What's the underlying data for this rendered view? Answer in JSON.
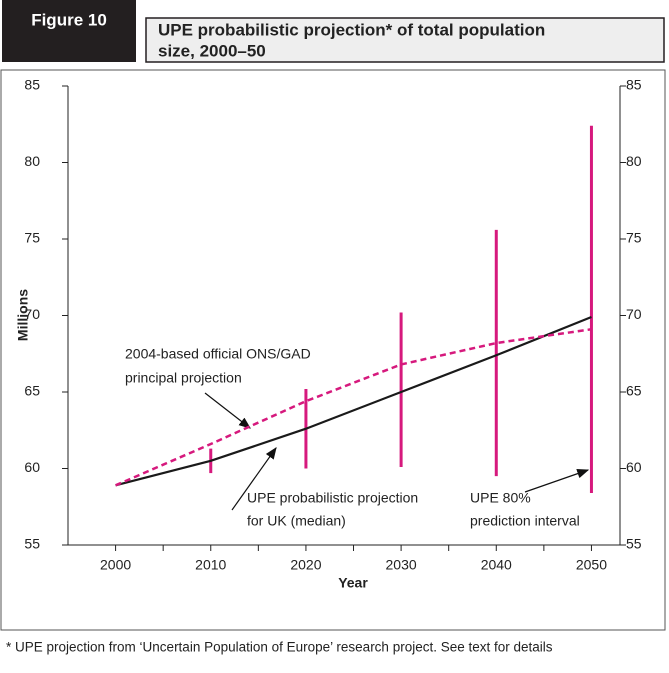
{
  "chart_data": {
    "type": "line",
    "figure_label": "Figure 10",
    "title_lines": [
      "UPE probabilistic projection* of total population",
      "size, 2000–50"
    ],
    "xlabel": "Year",
    "ylabel": "Millions",
    "xlim": [
      1995,
      2053
    ],
    "xticks": [
      2000,
      2010,
      2020,
      2030,
      2040,
      2050
    ],
    "ylim": [
      55,
      85
    ],
    "yticks": [
      55,
      60,
      65,
      70,
      75,
      80,
      85
    ],
    "x": [
      2000,
      2010,
      2020,
      2030,
      2040,
      2050
    ],
    "series": [
      {
        "color": "#1a1a1a",
        "dashed": false,
        "values": [
          58.9,
          60.5,
          62.6,
          65.0,
          67.4,
          69.9
        ]
      },
      {
        "color": "#d6197d",
        "dashed": true,
        "values": [
          58.9,
          61.6,
          64.4,
          66.8,
          68.2,
          69.1
        ]
      }
    ],
    "interval": {
      "color": "#d6197d",
      "x": [
        2010,
        2020,
        2030,
        2040,
        2050
      ],
      "low": [
        59.7,
        60.0,
        60.1,
        59.5,
        58.4
      ],
      "high": [
        61.3,
        65.2,
        70.2,
        75.6,
        82.4
      ]
    },
    "annotations": [
      {
        "lines": [
          "2004-based official ONS/GAD",
          "principal projection"
        ]
      },
      {
        "lines": [
          "UPE probabilistic projection",
          "for UK (median)"
        ]
      },
      {
        "lines": [
          "UPE 80%",
          "prediction interval"
        ]
      }
    ],
    "footnote": "* UPE projection from ‘Uncertain Population of Europe’ research project. See text for details"
  }
}
